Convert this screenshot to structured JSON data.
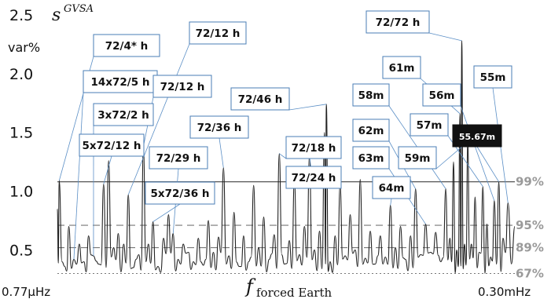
{
  "chart_data": {
    "type": "line",
    "title": "",
    "ylabel": "s",
    "ylabel_superscript": "GVSA",
    "yunits": "var%",
    "xlabel": "f",
    "xlabel_subscript": "forced Earth",
    "x_start_label": "0.77µHz",
    "x_end_label": "0.30mHz",
    "ylim": [
      0.27,
      2.5
    ],
    "yticks": [
      {
        "value": 2.5,
        "label": "2.5"
      },
      {
        "value": 2.0,
        "label": "2.0"
      },
      {
        "value": 1.5,
        "label": "1.5"
      },
      {
        "value": 1.0,
        "label": "1.0"
      },
      {
        "value": 0.5,
        "label": "0.5"
      }
    ],
    "significance_lines": [
      {
        "value": 1.08,
        "label": "99%",
        "style": "solid"
      },
      {
        "value": 0.71,
        "label": "95%",
        "style": "dashed"
      },
      {
        "value": 0.52,
        "label": "89%",
        "style": "dashed"
      },
      {
        "value": 0.3,
        "label": "67%",
        "style": "dotted"
      }
    ],
    "peaks": [
      {
        "x": 0.0,
        "y": 0.85
      },
      {
        "x": 0.004,
        "y": 1.09
      },
      {
        "x": 0.016,
        "y": 0.36
      },
      {
        "x": 0.025,
        "y": 0.7
      },
      {
        "x": 0.036,
        "y": 0.42
      },
      {
        "x": 0.048,
        "y": 0.55
      },
      {
        "x": 0.058,
        "y": 0.4
      },
      {
        "x": 0.068,
        "y": 0.62
      },
      {
        "x": 0.079,
        "y": 0.45
      },
      {
        "x": 0.09,
        "y": 0.38
      },
      {
        "x": 0.101,
        "y": 1.06
      },
      {
        "x": 0.112,
        "y": 1.26
      },
      {
        "x": 0.123,
        "y": 0.52
      },
      {
        "x": 0.133,
        "y": 0.64
      },
      {
        "x": 0.145,
        "y": 0.55
      },
      {
        "x": 0.155,
        "y": 0.97
      },
      {
        "x": 0.166,
        "y": 0.35
      },
      {
        "x": 0.178,
        "y": 0.46
      },
      {
        "x": 0.188,
        "y": 1.38
      },
      {
        "x": 0.199,
        "y": 0.55
      },
      {
        "x": 0.209,
        "y": 0.74
      },
      {
        "x": 0.22,
        "y": 0.36
      },
      {
        "x": 0.232,
        "y": 0.6
      },
      {
        "x": 0.243,
        "y": 0.8
      },
      {
        "x": 0.253,
        "y": 0.64
      },
      {
        "x": 0.264,
        "y": 0.42
      },
      {
        "x": 0.275,
        "y": 0.55
      },
      {
        "x": 0.287,
        "y": 0.48
      },
      {
        "x": 0.297,
        "y": 0.4
      },
      {
        "x": 0.308,
        "y": 0.6
      },
      {
        "x": 0.319,
        "y": 0.37
      },
      {
        "x": 0.33,
        "y": 0.75
      },
      {
        "x": 0.341,
        "y": 0.48
      },
      {
        "x": 0.352,
        "y": 0.61
      },
      {
        "x": 0.363,
        "y": 1.2
      },
      {
        "x": 0.375,
        "y": 0.45
      },
      {
        "x": 0.386,
        "y": 0.82
      },
      {
        "x": 0.397,
        "y": 0.36
      },
      {
        "x": 0.407,
        "y": 0.62
      },
      {
        "x": 0.418,
        "y": 0.4
      },
      {
        "x": 0.429,
        "y": 1.05
      },
      {
        "x": 0.44,
        "y": 0.52
      },
      {
        "x": 0.451,
        "y": 0.78
      },
      {
        "x": 0.463,
        "y": 0.42
      },
      {
        "x": 0.474,
        "y": 0.63
      },
      {
        "x": 0.485,
        "y": 1.32
      },
      {
        "x": 0.496,
        "y": 0.38
      },
      {
        "x": 0.507,
        "y": 0.58
      },
      {
        "x": 0.518,
        "y": 1.1
      },
      {
        "x": 0.529,
        "y": 0.46
      },
      {
        "x": 0.54,
        "y": 0.7
      },
      {
        "x": 0.551,
        "y": 1.3
      },
      {
        "x": 0.562,
        "y": 0.5
      },
      {
        "x": 0.573,
        "y": 0.66
      },
      {
        "x": 0.584,
        "y": 1.5
      },
      {
        "x": 0.588,
        "y": 1.74
      },
      {
        "x": 0.596,
        "y": 0.4
      },
      {
        "x": 0.607,
        "y": 0.62
      },
      {
        "x": 0.618,
        "y": 1.05
      },
      {
        "x": 0.629,
        "y": 0.45
      },
      {
        "x": 0.64,
        "y": 0.8
      },
      {
        "x": 0.651,
        "y": 0.5
      },
      {
        "x": 0.662,
        "y": 1.1
      },
      {
        "x": 0.673,
        "y": 0.43
      },
      {
        "x": 0.684,
        "y": 0.66
      },
      {
        "x": 0.695,
        "y": 0.38
      },
      {
        "x": 0.706,
        "y": 0.62
      },
      {
        "x": 0.717,
        "y": 0.44
      },
      {
        "x": 0.728,
        "y": 0.88
      },
      {
        "x": 0.739,
        "y": 0.52
      },
      {
        "x": 0.75,
        "y": 0.7
      },
      {
        "x": 0.761,
        "y": 0.42
      },
      {
        "x": 0.772,
        "y": 0.62
      },
      {
        "x": 0.783,
        "y": 1.02
      },
      {
        "x": 0.794,
        "y": 0.46
      },
      {
        "x": 0.805,
        "y": 0.72
      },
      {
        "x": 0.816,
        "y": 0.48
      },
      {
        "x": 0.827,
        "y": 0.65
      },
      {
        "x": 0.838,
        "y": 0.4
      },
      {
        "x": 0.849,
        "y": 1.02
      },
      {
        "x": 0.858,
        "y": 0.6
      },
      {
        "x": 0.866,
        "y": 1.25
      },
      {
        "x": 0.873,
        "y": 0.5
      },
      {
        "x": 0.88,
        "y": 1.66
      },
      {
        "x": 0.884,
        "y": 2.28
      },
      {
        "x": 0.89,
        "y": 0.55
      },
      {
        "x": 0.897,
        "y": 1.42
      },
      {
        "x": 0.905,
        "y": 0.55
      },
      {
        "x": 0.913,
        "y": 0.95
      },
      {
        "x": 0.922,
        "y": 0.48
      },
      {
        "x": 0.93,
        "y": 1.04
      },
      {
        "x": 0.939,
        "y": 0.72
      },
      {
        "x": 0.947,
        "y": 0.44
      },
      {
        "x": 0.955,
        "y": 0.92
      },
      {
        "x": 0.965,
        "y": 1.08
      },
      {
        "x": 0.974,
        "y": 0.6
      },
      {
        "x": 0.985,
        "y": 0.9
      },
      {
        "x": 1.0,
        "y": 0.7
      }
    ],
    "annotations": [
      {
        "label": "72/4* h",
        "peak_x": 0.004,
        "style": "box"
      },
      {
        "label": "14x72/5 h",
        "peak_x": 0.036,
        "style": "box"
      },
      {
        "label": "3x72/2 h",
        "peak_x": 0.079,
        "style": "box"
      },
      {
        "label": "5x72/12 h",
        "peak_x": 0.101,
        "style": "box"
      },
      {
        "label": "72/12 h",
        "peak_x": 0.155,
        "style": "box"
      },
      {
        "label": "72/12 h",
        "peak_x": 0.188,
        "style": "box"
      },
      {
        "label": "72/29 h",
        "peak_x": 0.253,
        "style": "box"
      },
      {
        "label": "5x72/36 h",
        "peak_x": 0.209,
        "style": "box"
      },
      {
        "label": "72/36 h",
        "peak_x": 0.363,
        "style": "box"
      },
      {
        "label": "72/46 h",
        "peak_x": 0.588,
        "style": "box"
      },
      {
        "label": "72/18 h",
        "peak_x": 0.485,
        "style": "box"
      },
      {
        "label": "72/24 h",
        "peak_x": 0.551,
        "style": "box"
      },
      {
        "label": "72/72 h",
        "peak_x": 0.884,
        "style": "box"
      },
      {
        "label": "61m",
        "peak_x": 0.88,
        "style": "box"
      },
      {
        "label": "55m",
        "peak_x": 0.985,
        "style": "box"
      },
      {
        "label": "58m",
        "peak_x": 0.849,
        "style": "box"
      },
      {
        "label": "56m",
        "peak_x": 0.955,
        "style": "box"
      },
      {
        "label": "57m",
        "peak_x": 0.93,
        "style": "box"
      },
      {
        "label": "55.67m",
        "peak_x": 0.965,
        "style": "inverted"
      },
      {
        "label": "62m",
        "peak_x": 0.783,
        "style": "box"
      },
      {
        "label": "63m",
        "peak_x": 0.805,
        "style": "box"
      },
      {
        "label": "59m",
        "peak_x": 0.897,
        "style": "box"
      },
      {
        "label": "64m",
        "peak_x": 0.728,
        "style": "box"
      }
    ],
    "grid": false,
    "colors": {
      "line": "#222222",
      "significance": "#9a9a9a",
      "leader": "#5b8fc6",
      "box_border": "#4a7db5"
    }
  }
}
